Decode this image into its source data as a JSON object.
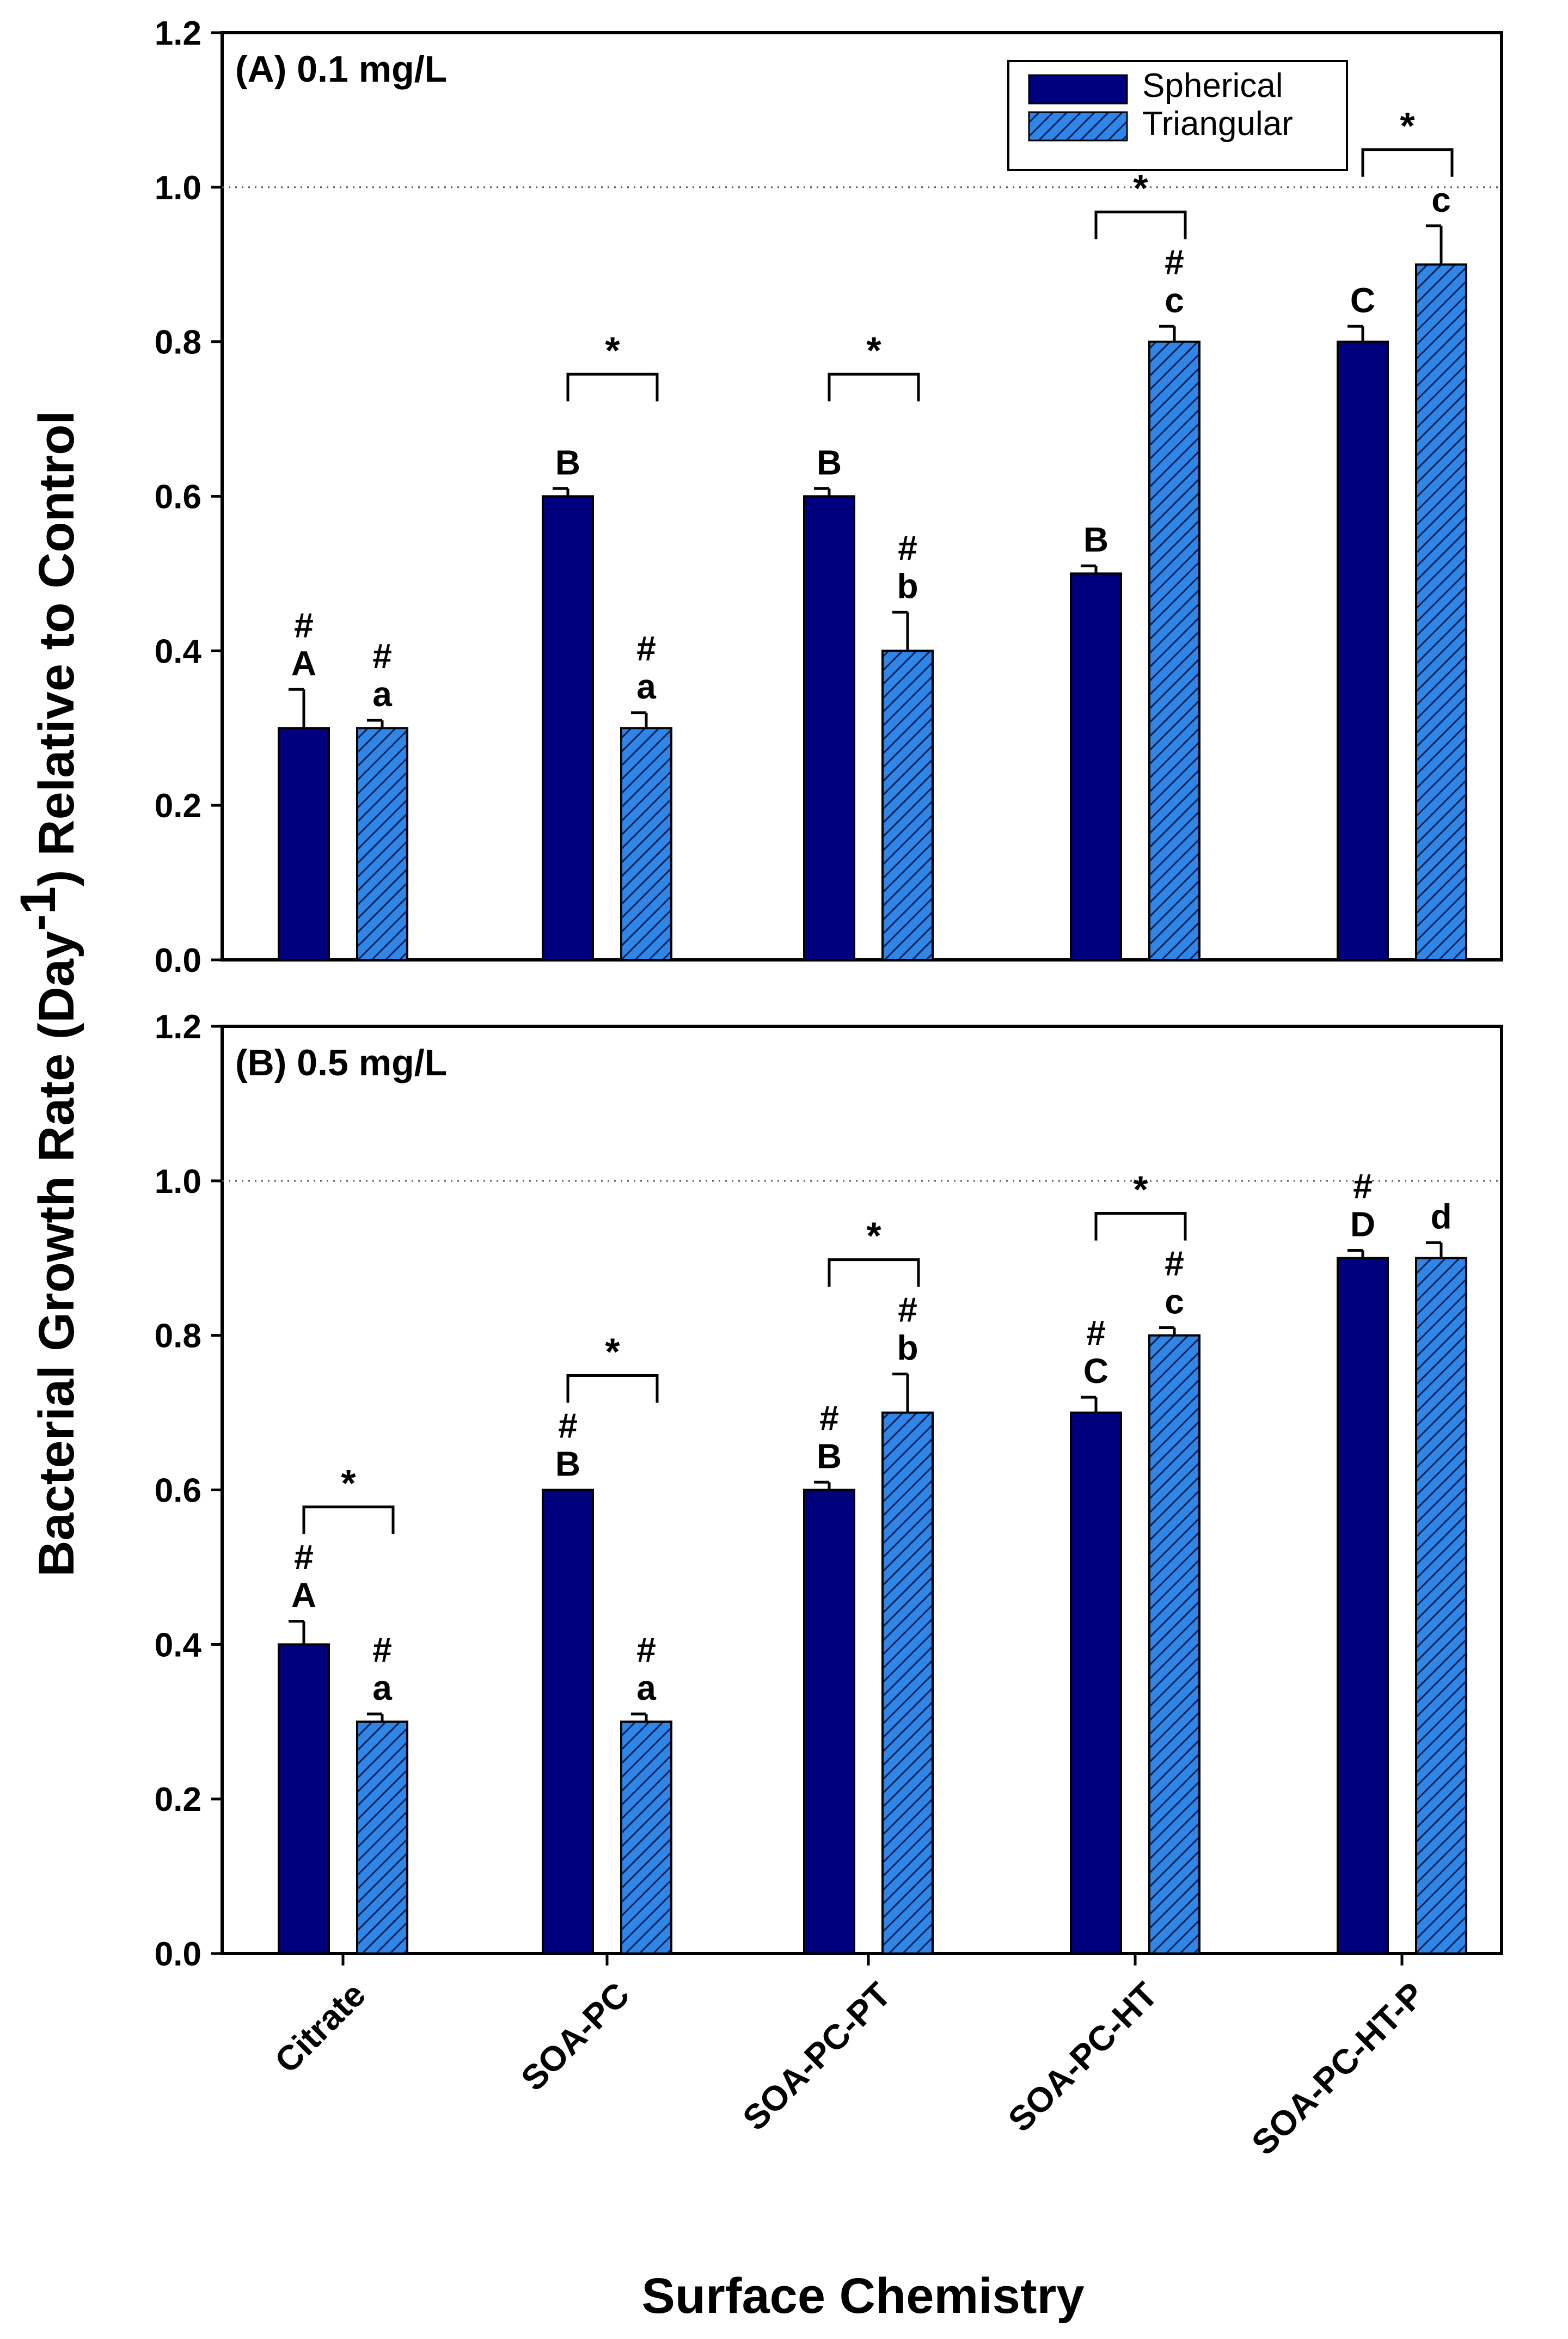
{
  "chart_data": {
    "type": "bar",
    "ylabel_main": "Bacterial Growth Rate (Day",
    "ylabel_sup": "-1",
    "ylabel_tail": ") Relative to Control",
    "xlabel": "Surface Chemistry",
    "categories": [
      "Citrate",
      "SOA-PC",
      "SOA-PC-PT",
      "SOA-PC-HT",
      "SOA-PC-HT-P"
    ],
    "ylim": [
      0,
      1.2
    ],
    "yticks": [
      "0.0",
      "0.2",
      "0.4",
      "0.6",
      "0.8",
      "1.0",
      "1.2"
    ],
    "reference_line": 1.0,
    "legend": [
      {
        "name": "Spherical",
        "color": "#00007F",
        "pattern": "solid"
      },
      {
        "name": "Triangular",
        "color": "#2E86E8",
        "pattern": "hatched"
      }
    ],
    "panels": [
      {
        "label": "(A) 0.1 mg/L",
        "series": [
          {
            "name": "Spherical",
            "values": [
              0.3,
              0.6,
              0.6,
              0.5,
              0.8
            ],
            "errors": [
              0.05,
              0.01,
              0.01,
              0.01,
              0.02
            ],
            "letters": [
              "A",
              "B",
              "B",
              "B",
              "C"
            ],
            "hash": [
              true,
              false,
              false,
              false,
              false
            ]
          },
          {
            "name": "Triangular",
            "values": [
              0.3,
              0.3,
              0.4,
              0.8,
              0.9
            ],
            "errors": [
              0.01,
              0.02,
              0.05,
              0.02,
              0.05
            ],
            "letters": [
              "a",
              "a",
              "b",
              "c",
              "c"
            ],
            "hash": [
              true,
              true,
              true,
              true,
              false
            ]
          }
        ],
        "significance": [
          {
            "category": 1,
            "label": "*"
          },
          {
            "category": 2,
            "label": "*"
          },
          {
            "category": 3,
            "label": "*"
          },
          {
            "category": 4,
            "label": "*"
          }
        ]
      },
      {
        "label": "(B) 0.5 mg/L",
        "series": [
          {
            "name": "Spherical",
            "values": [
              0.4,
              0.6,
              0.6,
              0.7,
              0.9
            ],
            "errors": [
              0.03,
              0.0,
              0.01,
              0.02,
              0.01
            ],
            "letters": [
              "A",
              "B",
              "B",
              "C",
              "D"
            ],
            "hash": [
              true,
              true,
              true,
              true,
              true
            ]
          },
          {
            "name": "Triangular",
            "values": [
              0.3,
              0.3,
              0.7,
              0.8,
              0.9
            ],
            "errors": [
              0.01,
              0.01,
              0.05,
              0.01,
              0.02
            ],
            "letters": [
              "a",
              "a",
              "b",
              "c",
              "d"
            ],
            "hash": [
              true,
              true,
              true,
              true,
              false
            ]
          }
        ],
        "significance": [
          {
            "category": 0,
            "label": "*"
          },
          {
            "category": 1,
            "label": "*"
          },
          {
            "category": 2,
            "label": "*"
          },
          {
            "category": 3,
            "label": "*"
          }
        ]
      }
    ]
  }
}
